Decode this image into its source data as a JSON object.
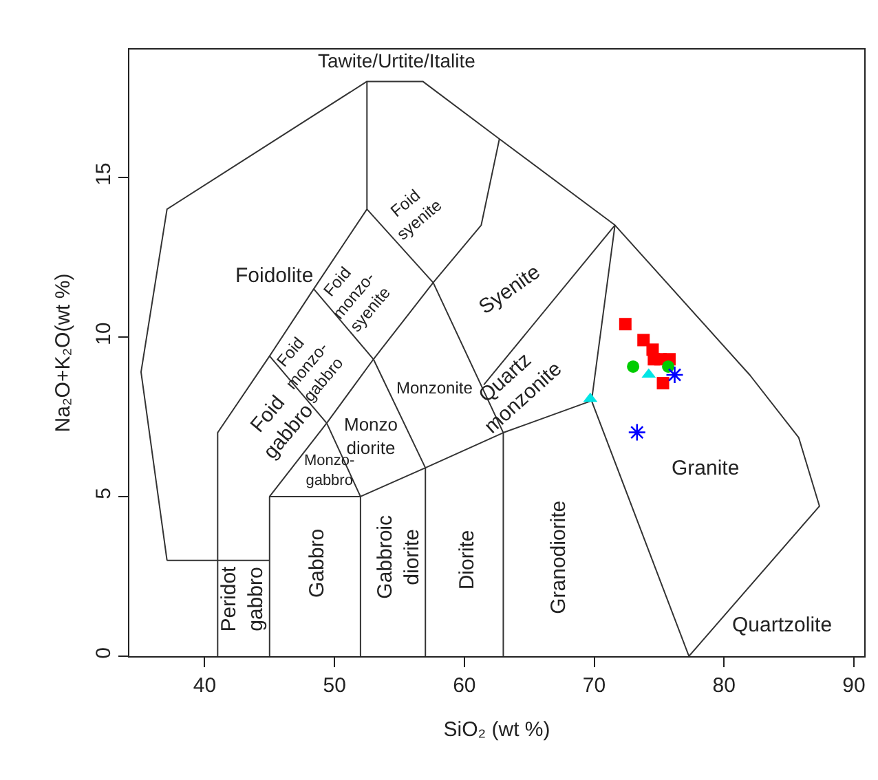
{
  "chart_data": {
    "type": "scatter",
    "xlabel": "SiO₂ (wt %)",
    "ylabel": "Na₂O+K₂O(wt %)",
    "xlim": [
      34.2,
      90.8
    ],
    "ylim": [
      0,
      19
    ],
    "xticks": [
      40,
      50,
      60,
      70,
      80,
      90
    ],
    "yticks": [
      0,
      5,
      10,
      15
    ],
    "series": [
      {
        "type": "line",
        "color": "#333333",
        "marker": "none",
        "x": [
          37.1,
          35.1,
          37.1,
          52.5,
          56.8,
          62.7,
          71.6,
          82.0,
          85.75,
          87.35,
          77.3,
          null,
          37.1,
          45,
          null,
          41,
          41,
          45,
          48.4,
          52.5,
          52.5,
          null,
          45,
          45,
          52,
          52,
          null,
          45,
          49.4,
          52,
          null,
          45,
          49.4,
          53,
          57.6,
          61.3,
          62.7,
          null,
          48.4,
          53,
          null,
          52.5,
          57.6,
          null,
          52,
          57,
          63,
          69.8,
          71.6,
          null,
          53,
          57,
          57,
          null,
          57.6,
          63,
          63,
          null,
          61.5,
          71.6,
          null,
          69.8,
          77.3
        ],
        "values": [
          3,
          8.9,
          14,
          18,
          18,
          16.2,
          13.5,
          8.8,
          6.85,
          4.7,
          0,
          null,
          3,
          3,
          null,
          0,
          7,
          9.4,
          11.5,
          14,
          18,
          null,
          0,
          5,
          5,
          0,
          null,
          5,
          7.3,
          5,
          null,
          9.4,
          7.3,
          9.3,
          11.7,
          13.5,
          16.2,
          null,
          11.5,
          9.3,
          null,
          14,
          11.7,
          null,
          5,
          5.9,
          7,
          8,
          13.5,
          null,
          9.3,
          5.9,
          0,
          null,
          11.7,
          7,
          0,
          null,
          8.5,
          13.5,
          null,
          8,
          0
        ]
      },
      {
        "color": "#ff0000",
        "marker": "square",
        "x": [
          72.4,
          73.8,
          74.5,
          74.6,
          75.1,
          75.8,
          75.3
        ],
        "values": [
          10.4,
          9.9,
          9.6,
          9.3,
          9.3,
          9.3,
          8.55
        ]
      },
      {
        "color": "#00cc00",
        "marker": "circle",
        "x": [
          73.0,
          75.7
        ],
        "values": [
          9.07,
          9.07
        ]
      },
      {
        "color": "#00e5e5",
        "marker": "triangle",
        "x": [
          74.2,
          69.7
        ],
        "values": [
          8.82,
          8.06
        ]
      },
      {
        "color": "#0000ff",
        "marker": "cross",
        "x": [
          76.2,
          73.3
        ],
        "values": [
          8.81,
          7.01
        ]
      }
    ],
    "annotations": [
      "Tawite/Urtite/Italite",
      "Foidolite",
      "Foid\nsyenite",
      "Foid\nmonzo-\nsyenite",
      "Foid\nmonzo-\ngabbro",
      "Foid\ngabbro",
      "Syenite",
      "Monzonite",
      "Quartz\nmonzonite",
      "Monzo\ndiorite",
      "Monzo-\ngabbro",
      "Peridot\ngabbro",
      "Gabbro",
      "Gabbroic\ndiorite",
      "Diorite",
      "Granodiorite",
      "Granite",
      "Quartzolite"
    ]
  }
}
